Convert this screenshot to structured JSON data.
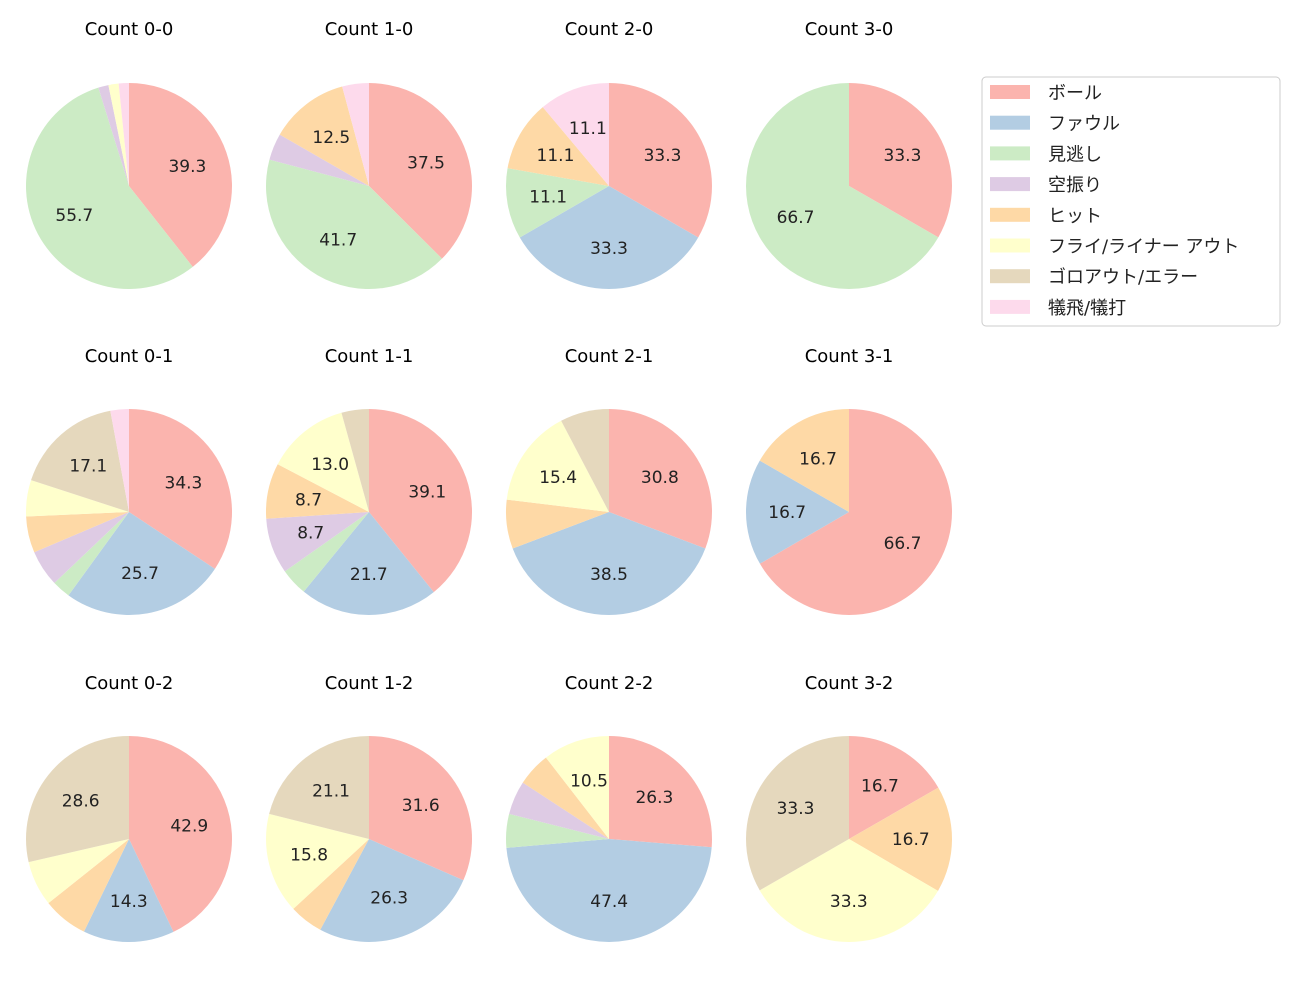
{
  "chart_data": {
    "type": "pie",
    "categories": [
      "ボール",
      "ファウル",
      "見逃し",
      "空振り",
      "ヒット",
      "フライ/ライナー アウト",
      "ゴロアウト/エラー",
      "犠飛/犠打"
    ],
    "colors": [
      "#fbb4ae",
      "#b3cde3",
      "#ccebc5",
      "#decbe4",
      "#fed9a6",
      "#ffffcc",
      "#e5d8bd",
      "#fddaec"
    ],
    "legend_placement": "upper-right",
    "start_angle": 90,
    "direction": "clockwise",
    "label_min_percent": 8,
    "pies": [
      {
        "title": "Count 0-0",
        "values": [
          39.3,
          0,
          55.7,
          1.6,
          0,
          1.6,
          0,
          1.6
        ]
      },
      {
        "title": "Count 1-0",
        "values": [
          37.5,
          0,
          41.7,
          4.2,
          12.5,
          0,
          0,
          4.2
        ]
      },
      {
        "title": "Count 2-0",
        "values": [
          33.3,
          33.3,
          11.1,
          0,
          11.1,
          0,
          0,
          11.1
        ]
      },
      {
        "title": "Count 3-0",
        "values": [
          33.3,
          0,
          66.7,
          0,
          0,
          0,
          0,
          0
        ]
      },
      {
        "title": "Count 0-1",
        "values": [
          34.3,
          25.7,
          2.9,
          5.7,
          5.7,
          5.7,
          17.1,
          2.9
        ]
      },
      {
        "title": "Count 1-1",
        "values": [
          39.1,
          21.7,
          4.3,
          8.7,
          8.7,
          13.0,
          4.3,
          0
        ]
      },
      {
        "title": "Count 2-1",
        "values": [
          30.8,
          38.5,
          0,
          0,
          7.7,
          15.4,
          7.7,
          0
        ]
      },
      {
        "title": "Count 3-1",
        "values": [
          66.7,
          16.7,
          0,
          0,
          16.7,
          0,
          0,
          0
        ]
      },
      {
        "title": "Count 0-2",
        "values": [
          42.9,
          14.3,
          0,
          0,
          7.1,
          7.1,
          28.6,
          0
        ]
      },
      {
        "title": "Count 1-2",
        "values": [
          31.6,
          26.3,
          0,
          0,
          5.3,
          15.8,
          21.1,
          0
        ]
      },
      {
        "title": "Count 2-2",
        "values": [
          26.3,
          47.4,
          5.3,
          5.3,
          5.3,
          10.5,
          0,
          0
        ]
      },
      {
        "title": "Count 3-2",
        "values": [
          16.7,
          0,
          0,
          0,
          16.7,
          33.3,
          33.3,
          0
        ]
      }
    ]
  }
}
